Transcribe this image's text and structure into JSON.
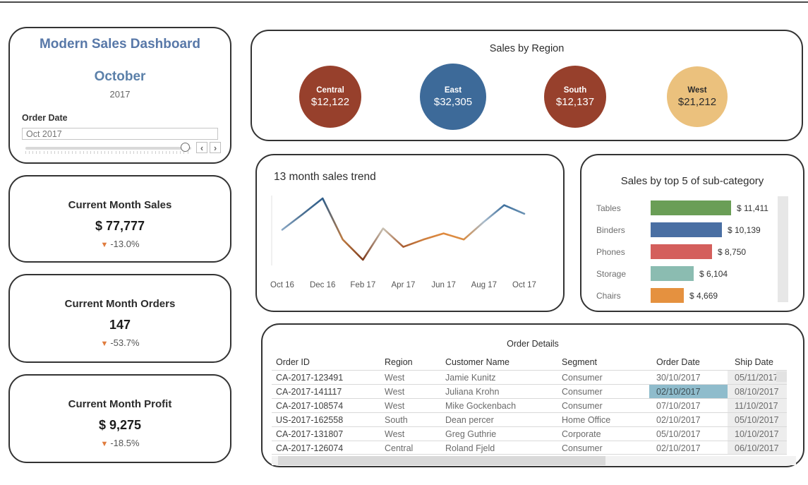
{
  "header_card": {
    "title": "Modern Sales Dashboard",
    "month": "October",
    "year": "2017",
    "filter_label": "Order Date",
    "filter_value": "Oct 2017",
    "prev_label": "‹",
    "next_label": "›"
  },
  "kpis": [
    {
      "title": "Current Month Sales",
      "value": "$ 77,777",
      "delta": "-13.0%",
      "direction": "down"
    },
    {
      "title": "Current Month Orders",
      "value": "147",
      "delta": "-53.7%",
      "direction": "down"
    },
    {
      "title": "Current Month Profit",
      "value": "$ 9,275",
      "delta": "-18.5%",
      "direction": "down"
    }
  ],
  "colors": {
    "accent_title_blue": "#5878A8",
    "delta_arrow_orange": "#E07C3E",
    "card_border": "#333333",
    "highlight_cell_blue": "#8FBCCC",
    "shipdate_column_gray": "#EDEDED"
  },
  "chart_data": [
    {
      "type": "bubble",
      "title": "Sales by Region",
      "categories": [
        "Central",
        "East",
        "South",
        "West"
      ],
      "values": [
        12122,
        32305,
        12137,
        21212
      ],
      "value_labels": [
        "$12,122",
        "$32,305",
        "$12,137",
        "$21,212"
      ],
      "colors": [
        "#97402C",
        "#3D6A99",
        "#97402C",
        "#EBC17D"
      ],
      "text_colors": [
        "#ffffff",
        "#ffffff",
        "#ffffff",
        "#2b2b2b"
      ],
      "diameters": [
        88,
        94,
        88,
        86
      ]
    },
    {
      "type": "line",
      "title": "13 month sales trend",
      "x": [
        "Oct 16",
        "Nov 16",
        "Dec 16",
        "Jan 17",
        "Feb 17",
        "Mar 17",
        "Apr 17",
        "May 17",
        "Jun 17",
        "Jul 17",
        "Aug 17",
        "Sep 17",
        "Oct 17"
      ],
      "values": [
        49,
        74,
        100,
        33,
        0,
        51,
        21,
        33,
        43,
        33,
        62,
        89,
        75
      ],
      "point_colors": [
        "#8AA8C5",
        "#4C7092",
        "#2E5E8C",
        "#BE7B41",
        "#7D3A1C",
        "#C9C2B4",
        "#A95C30",
        "#CD7F3F",
        "#E08A3E",
        "#D98C42",
        "#A9BCCD",
        "#3C6E9C",
        "#6C93B4"
      ],
      "x_axis_labels": [
        "Oct 16",
        "Dec 16",
        "Feb 17",
        "Apr 17",
        "Jun 17",
        "Aug 17",
        "Oct 17"
      ],
      "ylim": [
        0,
        100
      ],
      "grid": false,
      "color_encoding": "value (high = blue, low = orange/brown)"
    },
    {
      "type": "bar",
      "title": "Sales by top 5 of sub-category",
      "categories": [
        "Tables",
        "Binders",
        "Phones",
        "Storage",
        "Chairs"
      ],
      "values": [
        11411,
        10139,
        8750,
        6104,
        4669
      ],
      "value_labels": [
        "$ 11,411",
        "$ 10,139",
        "$ 8,750",
        "$ 6,104",
        "$ 4,669"
      ],
      "colors": [
        "#6A9E56",
        "#4A6FA3",
        "#D45F5C",
        "#8BBCB1",
        "#E5913F"
      ],
      "xmax": 11411,
      "orientation": "horizontal"
    },
    {
      "type": "table",
      "title": "Order Details",
      "headers": [
        "Order ID",
        "Region",
        "Customer Name",
        "Segment",
        "Order Date",
        "Ship Date"
      ],
      "rows": [
        [
          "CA-2017-123491",
          "West",
          "Jamie Kunitz",
          "Consumer",
          "30/10/2017",
          "05/11/2017"
        ],
        [
          "CA-2017-141117",
          "West",
          "Juliana Krohn",
          "Consumer",
          "02/10/2017",
          "08/10/2017"
        ],
        [
          "CA-2017-108574",
          "West",
          "Mike Gockenbach",
          "Consumer",
          "07/10/2017",
          "11/10/2017"
        ],
        [
          "US-2017-162558",
          "South",
          "Dean percer",
          "Home Office",
          "02/10/2017",
          "05/10/2017"
        ],
        [
          "CA-2017-131807",
          "West",
          "Greg Guthrie",
          "Corporate",
          "05/10/2017",
          "10/10/2017"
        ],
        [
          "CA-2017-126074",
          "Central",
          "Roland Fjeld",
          "Consumer",
          "02/10/2017",
          "06/10/2017"
        ]
      ],
      "highlight": {
        "row": 1,
        "col": 4,
        "value": "02/10/2017"
      }
    }
  ]
}
